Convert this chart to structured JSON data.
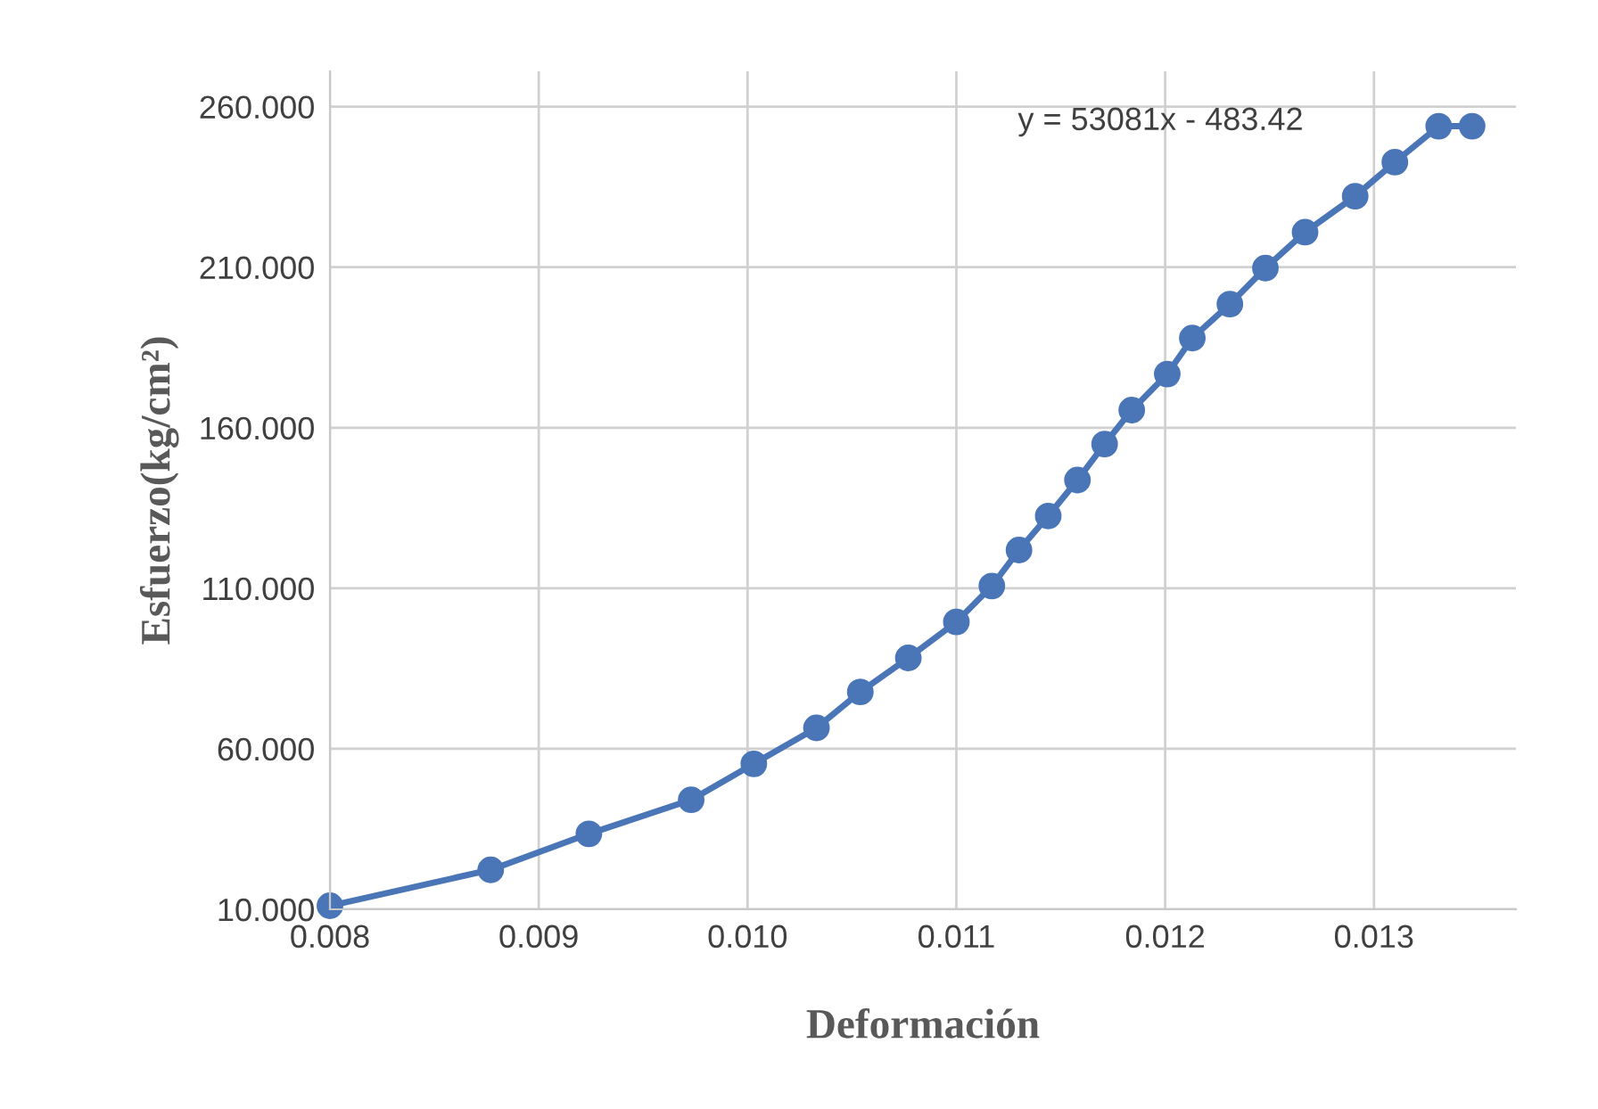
{
  "chart_data": {
    "type": "line",
    "xlabel": "Deformación",
    "ylabel": "Esfuerzo(kg/cm²)",
    "annotations": [
      "y = 53081x - 483.42"
    ],
    "series": [
      {
        "color": "#4a76b8",
        "x": [
          0.008,
          0.00877,
          0.00924,
          0.00973,
          0.01003,
          0.01033,
          0.01054,
          0.01077,
          0.011,
          0.01117,
          0.0113,
          0.01144,
          0.01158,
          0.01171,
          0.01184,
          0.01201,
          0.01213,
          0.01231,
          0.01248,
          0.01267,
          0.01291,
          0.0131,
          0.01331,
          0.01347
        ],
        "values": [
          11.1,
          22.3,
          33.5,
          44.1,
          55.3,
          66.5,
          77.7,
          88.3,
          99.5,
          110.7,
          121.9,
          132.5,
          143.7,
          154.9,
          165.5,
          176.7,
          187.9,
          198.5,
          209.7,
          220.9,
          232.1,
          242.7,
          253.9,
          253.9
        ]
      }
    ],
    "xlim": [
      0.008,
      0.01368
    ],
    "xticks": [
      {
        "value": 0.008,
        "label": "0.008"
      },
      {
        "value": 0.009,
        "label": "0.009"
      },
      {
        "value": 0.01,
        "label": "0.010"
      },
      {
        "value": 0.011,
        "label": "0.011"
      },
      {
        "value": 0.012,
        "label": "0.012"
      },
      {
        "value": 0.013,
        "label": "0.013"
      }
    ],
    "ylim": [
      10,
      271
    ],
    "yticks": [
      {
        "value": 10,
        "label": "10.000"
      },
      {
        "value": 60,
        "label": "60.000"
      },
      {
        "value": 110,
        "label": "110.000"
      },
      {
        "value": 160,
        "label": "160.000"
      },
      {
        "value": 210,
        "label": "210.000"
      },
      {
        "value": 260,
        "label": "260.000"
      }
    ],
    "grid": true,
    "marker": "circle",
    "line_style": "solid",
    "legend": false
  }
}
